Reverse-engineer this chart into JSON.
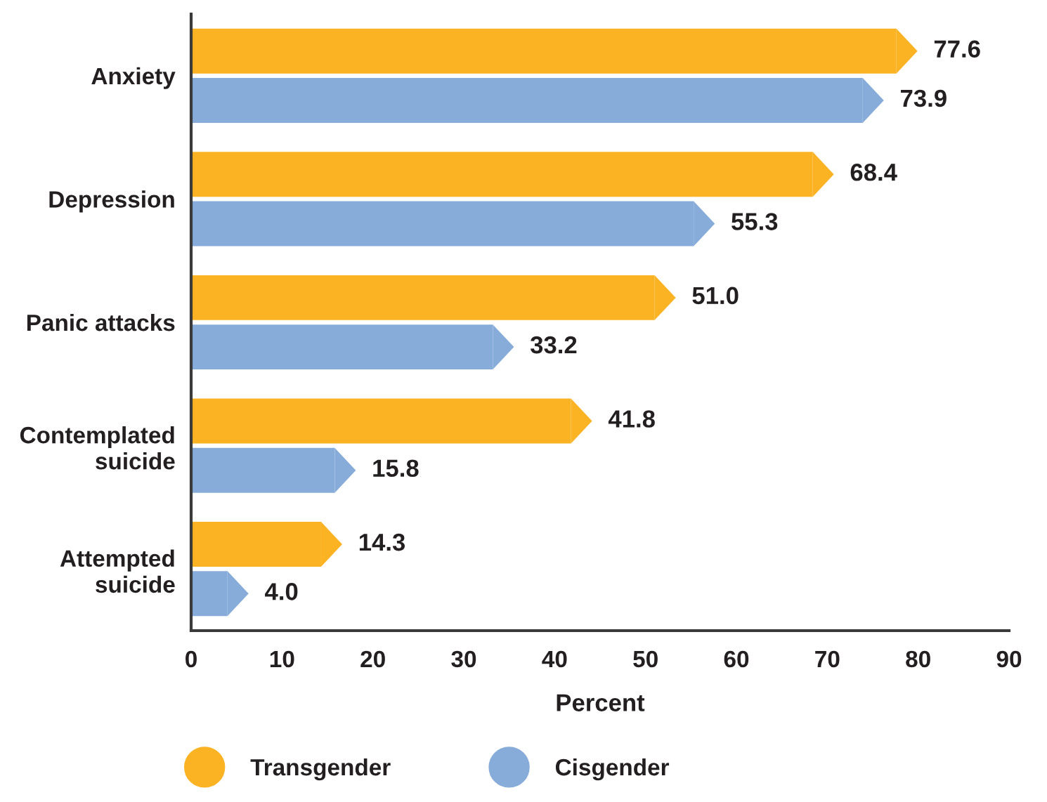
{
  "chart_data": {
    "type": "bar",
    "orientation": "horizontal",
    "xlabel": "Percent",
    "categories": [
      "Anxiety",
      "Depression",
      "Panic attacks",
      "Contemplated\nsuicide",
      "Attempted\nsuicide"
    ],
    "series": [
      {
        "name": "Transgender",
        "color": "#fbb324",
        "values": [
          77.6,
          68.4,
          51.0,
          41.8,
          14.3
        ],
        "value_labels": [
          "77.6",
          "68.4",
          "51.0",
          "41.8",
          "14.3"
        ]
      },
      {
        "name": "Cisgender",
        "color": "#87acd9",
        "values": [
          73.9,
          55.3,
          33.2,
          15.8,
          4.0
        ],
        "value_labels": [
          "73.9",
          "55.3",
          "33.2",
          "15.8",
          "4.0"
        ]
      }
    ],
    "xlim": [
      0,
      90
    ],
    "xticks": [
      0,
      10,
      20,
      30,
      40,
      50,
      60,
      70,
      80,
      90
    ],
    "legend": "bottom"
  }
}
